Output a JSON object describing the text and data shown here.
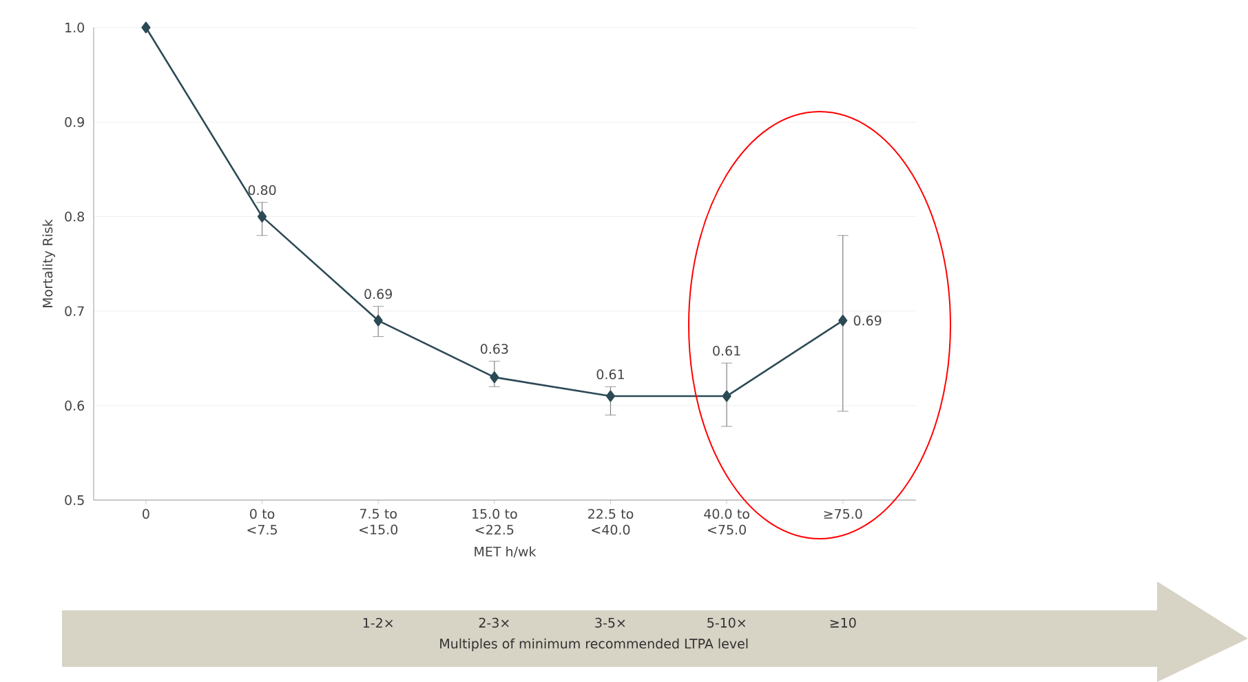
{
  "chart_data": {
    "type": "line",
    "xlabel": "MET h/wk",
    "ylabel": "Mortality Risk",
    "categories": [
      "0",
      "0 to <7.5",
      "7.5 to <15.0",
      "15.0 to <22.5",
      "22.5 to <40.0",
      "40.0 to <75.0",
      "≥75.0"
    ],
    "values": [
      1.0,
      0.8,
      0.69,
      0.63,
      0.61,
      0.61,
      0.69
    ],
    "errors": [
      null,
      [
        0.78,
        0.815
      ],
      [
        0.673,
        0.705
      ],
      [
        0.62,
        0.647
      ],
      [
        0.59,
        0.62
      ],
      [
        0.578,
        0.645
      ],
      [
        0.594,
        0.78
      ]
    ],
    "value_labels": [
      null,
      "0.80",
      "0.69",
      "0.63",
      "0.61",
      "0.61",
      "0.69"
    ],
    "color": "#2c4a55",
    "marker": "diamond",
    "line_style": "solid",
    "grid": "y",
    "ylim": [
      0.5,
      1.0
    ],
    "yticks": [
      0.5,
      0.6,
      0.7,
      0.8,
      0.9,
      {
        "value": 1.0,
        "label": "1.0"
      }
    ],
    "annotations": [
      "1-2×",
      "2-3×",
      "3-5×",
      "5-10×",
      "≥10",
      "Multiples of minimum recommended LTPA level"
    ]
  }
}
